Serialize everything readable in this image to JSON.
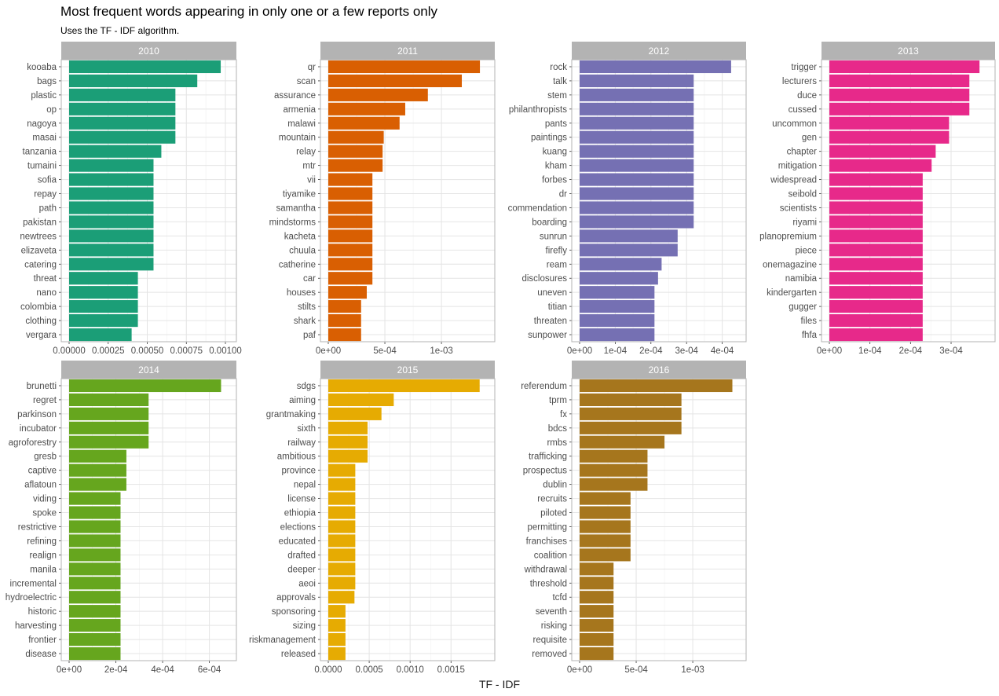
{
  "title": "Most frequent words appearing in only one or a few reports only",
  "subtitle": "Uses the TF - IDF algorithm.",
  "xlabel": "TF - IDF",
  "chart_data": {
    "type": "bar",
    "orientation": "horizontal",
    "grid": true,
    "facet_strip_color": "#b3b3b3",
    "panels": [
      {
        "year": "2010",
        "color": "#1b9e77",
        "xlim": [
          0,
          0.00102
        ],
        "ticks": [
          0,
          0.00025,
          0.0005,
          0.00075,
          0.001
        ],
        "tick_labels": [
          "0.00000",
          "0.00025",
          "0.00050",
          "0.00075",
          "0.00100"
        ],
        "words": [
          "kooaba",
          "bags",
          "plastic",
          "op",
          "nagoya",
          "masai",
          "tanzania",
          "tumaini",
          "sofia",
          "repay",
          "path",
          "pakistan",
          "newtrees",
          "elizaveta",
          "catering",
          "threat",
          "nano",
          "colombia",
          "clothing",
          "vergara"
        ],
        "values": [
          0.00097,
          0.00082,
          0.00068,
          0.00068,
          0.00068,
          0.00068,
          0.00059,
          0.00054,
          0.00054,
          0.00054,
          0.00054,
          0.00054,
          0.00054,
          0.00054,
          0.00054,
          0.00044,
          0.00044,
          0.00044,
          0.00044,
          0.0004
        ]
      },
      {
        "year": "2011",
        "color": "#d95f02",
        "xlim": [
          0,
          0.001402
        ],
        "ticks": [
          0,
          0.0005,
          0.001
        ],
        "tick_labels": [
          "0e+00",
          "5e-04",
          "1e-03"
        ],
        "words": [
          "qr",
          "scan",
          "assurance",
          "armenia",
          "malawi",
          "mountain",
          "relay",
          "mtr",
          "vii",
          "tiyamike",
          "samantha",
          "mindstorms",
          "kacheta",
          "chuula",
          "catherine",
          "car",
          "houses",
          "stilts",
          "shark",
          "paf"
        ],
        "values": [
          0.00134,
          0.00118,
          0.00088,
          0.00068,
          0.00063,
          0.00049,
          0.00048,
          0.00048,
          0.00039,
          0.00039,
          0.00039,
          0.00039,
          0.00039,
          0.00039,
          0.00039,
          0.00039,
          0.00034,
          0.00029,
          0.00029,
          0.00029
        ]
      },
      {
        "year": "2012",
        "color": "#7570b3",
        "xlim": [
          0,
          0.000445
        ],
        "ticks": [
          0,
          0.0001,
          0.0002,
          0.0003,
          0.0004
        ],
        "tick_labels": [
          "0e+00",
          "1e-04",
          "2e-04",
          "3e-04",
          "4e-04"
        ],
        "words": [
          "rock",
          "talk",
          "stem",
          "philanthropists",
          "pants",
          "paintings",
          "kuang",
          "kham",
          "forbes",
          "dr",
          "commendation",
          "boarding",
          "sunrun",
          "firefly",
          "ream",
          "disclosures",
          "uneven",
          "titian",
          "threaten",
          "sunpower"
        ],
        "values": [
          0.000425,
          0.00032,
          0.00032,
          0.00032,
          0.00032,
          0.00032,
          0.00032,
          0.00032,
          0.00032,
          0.00032,
          0.00032,
          0.00032,
          0.000275,
          0.000275,
          0.00023,
          0.00022,
          0.00021,
          0.00021,
          0.00021,
          0.00021
        ]
      },
      {
        "year": "2013",
        "color": "#e7298a",
        "xlim": [
          0,
          0.000389
        ],
        "ticks": [
          0,
          0.0001,
          0.0002,
          0.0003
        ],
        "tick_labels": [
          "0e+00",
          "1e-04",
          "2e-04",
          "3e-04"
        ],
        "words": [
          "trigger",
          "lecturers",
          "duce",
          "cussed",
          "uncommon",
          "gen",
          "chapter",
          "mitigation",
          "widespread",
          "seibold",
          "scientists",
          "riyami",
          "planopremium",
          "piece",
          "onemagazine",
          "namibia",
          "kindergarten",
          "gugger",
          "files",
          "fhfa"
        ],
        "values": [
          0.00037,
          0.000345,
          0.000345,
          0.000345,
          0.000295,
          0.000295,
          0.000262,
          0.000252,
          0.00023,
          0.00023,
          0.00023,
          0.00023,
          0.00023,
          0.00023,
          0.00023,
          0.00023,
          0.00023,
          0.00023,
          0.00023,
          0.00023
        ]
      },
      {
        "year": "2014",
        "color": "#66a61e",
        "xlim": [
          0,
          0.000682
        ],
        "ticks": [
          0,
          0.0002,
          0.0004,
          0.0006
        ],
        "tick_labels": [
          "0e+00",
          "2e-04",
          "4e-04",
          "6e-04"
        ],
        "words": [
          "brunetti",
          "regret",
          "parkinson",
          "incubator",
          "agroforestry",
          "gresb",
          "captive",
          "aflatoun",
          "viding",
          "spoke",
          "restrictive",
          "refining",
          "realign",
          "manila",
          "incremental",
          "hydroelectric",
          "historic",
          "harvesting",
          "frontier",
          "disease"
        ],
        "values": [
          0.00065,
          0.00034,
          0.00034,
          0.00034,
          0.00034,
          0.000245,
          0.000245,
          0.000245,
          0.00022,
          0.00022,
          0.00022,
          0.00022,
          0.00022,
          0.00022,
          0.00022,
          0.00022,
          0.00022,
          0.00022,
          0.00022,
          0.00022
        ]
      },
      {
        "year": "2015",
        "color": "#e6ab02",
        "xlim": [
          0,
          0.001939
        ],
        "ticks": [
          0,
          0.0005,
          0.001,
          0.0015
        ],
        "tick_labels": [
          "0.0000",
          "0.0005",
          "0.0010",
          "0.0015"
        ],
        "words": [
          "sdgs",
          "aiming",
          "grantmaking",
          "sixth",
          "railway",
          "ambitious",
          "province",
          "nepal",
          "license",
          "ethiopia",
          "elections",
          "educated",
          "drafted",
          "deeper",
          "aeoi",
          "approvals",
          "sponsoring",
          "sizing",
          "riskmanagement",
          "released"
        ],
        "values": [
          0.00185,
          0.0008,
          0.00065,
          0.00048,
          0.00048,
          0.00048,
          0.00033,
          0.00033,
          0.00033,
          0.00033,
          0.00033,
          0.00033,
          0.00033,
          0.00033,
          0.00033,
          0.00032,
          0.00021,
          0.00021,
          0.00021,
          0.00021
        ]
      },
      {
        "year": "2016",
        "color": "#a6761d",
        "xlim": [
          0,
          0.001402
        ],
        "ticks": [
          0,
          0.0005,
          0.001
        ],
        "tick_labels": [
          "0e+00",
          "5e-04",
          "1e-03"
        ],
        "words": [
          "referendum",
          "tprm",
          "fx",
          "bdcs",
          "rmbs",
          "trafficking",
          "prospectus",
          "dublin",
          "recruits",
          "piloted",
          "permitting",
          "franchises",
          "coalition",
          "withdrawal",
          "threshold",
          "tcfd",
          "seventh",
          "risking",
          "requisite",
          "removed"
        ],
        "values": [
          0.00135,
          0.0009,
          0.0009,
          0.0009,
          0.00075,
          0.0006,
          0.0006,
          0.0006,
          0.00045,
          0.00045,
          0.00045,
          0.00045,
          0.00045,
          0.0003,
          0.0003,
          0.0003,
          0.0003,
          0.0003,
          0.0003,
          0.0003
        ]
      }
    ]
  }
}
